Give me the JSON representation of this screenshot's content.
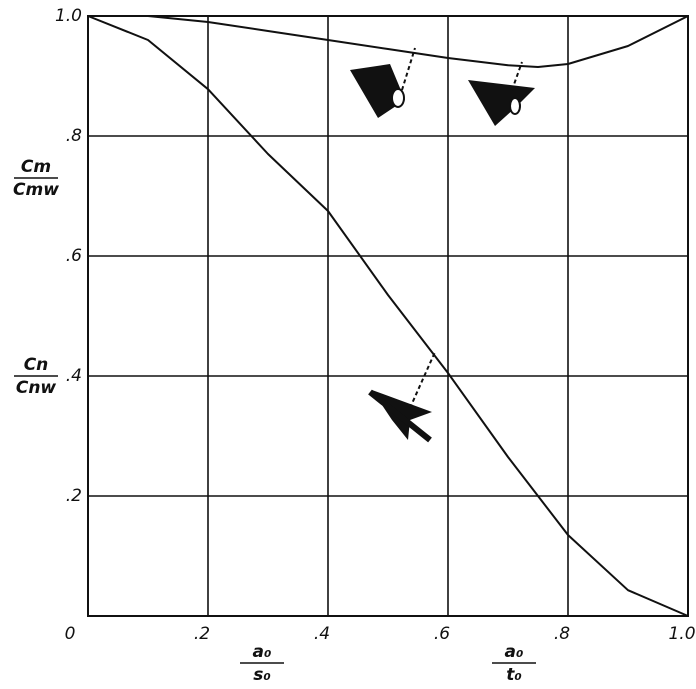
{
  "chart_data": {
    "type": "line",
    "x": [
      0,
      0.1,
      0.2,
      0.3,
      0.4,
      0.5,
      0.6,
      0.7,
      0.75,
      0.8,
      0.9,
      1.0
    ],
    "series": [
      {
        "color": "#111111",
        "values": [
          1.0,
          1.0,
          0.99,
          0.975,
          0.96,
          0.945,
          0.93,
          0.918,
          0.915,
          0.92,
          0.95,
          1.0
        ]
      },
      {
        "color": "#111111",
        "values": [
          1.0,
          0.96,
          0.878,
          0.77,
          0.675,
          0.535,
          0.405,
          0.265,
          0.2,
          0.135,
          0.043,
          0.0
        ]
      }
    ],
    "xlim": [
      0,
      1.0
    ],
    "ylim": [
      0,
      1.0
    ],
    "xticks": [
      0,
      {
        "value": 0.2,
        "label": ".2"
      },
      {
        "value": 0.4,
        "label": ".4"
      },
      {
        "value": 0.6,
        "label": ".6"
      },
      {
        "value": 0.8,
        "label": ".8"
      },
      {
        "value": 1.0,
        "label": "1.0"
      }
    ],
    "yticks": [
      {
        "value": 0.2,
        "label": ".2"
      },
      {
        "value": 0.4,
        "label": ".4"
      },
      {
        "value": 0.6,
        "label": ".6"
      },
      {
        "value": 0.8,
        "label": ".8"
      },
      {
        "value": 1.0,
        "label": "1.0"
      }
    ],
    "grid": true,
    "x_labels": [
      {
        "numerator": "a₀",
        "denominator": "s₀"
      },
      {
        "numerator": "a₀",
        "denominator": "t₀"
      }
    ],
    "y_labels": [
      {
        "numerator": "Cm",
        "denominator": "Cmw"
      },
      {
        "numerator": "Cn",
        "denominator": "Cnw"
      }
    ]
  }
}
